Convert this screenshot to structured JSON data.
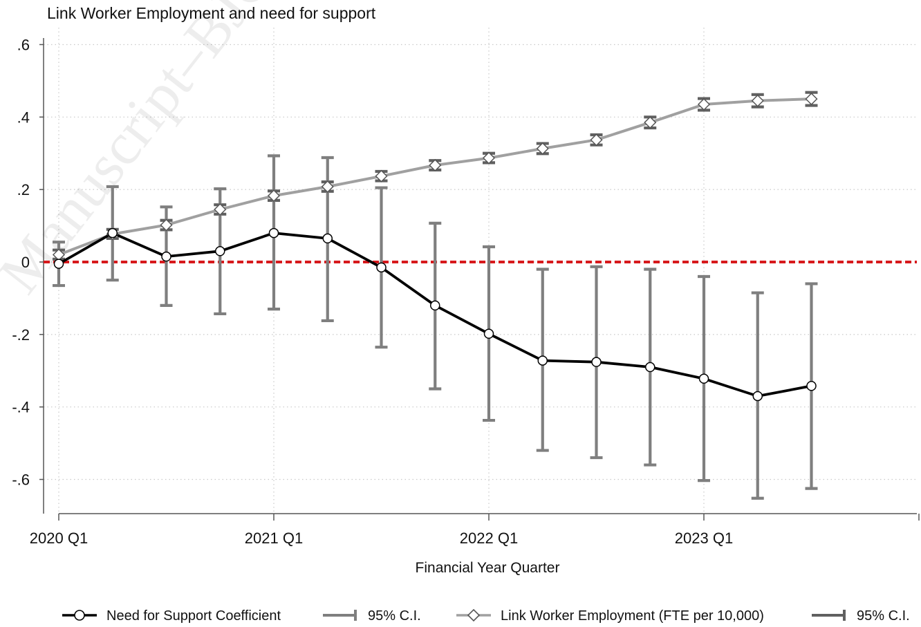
{
  "chart_data": {
    "type": "line",
    "title": "Link Worker Employment and need for support",
    "xlabel": "Financial Year Quarter",
    "ylabel": "",
    "ylim": [
      -0.7,
      0.63
    ],
    "yticks": [
      {
        "value": 0.6,
        "label": ".6"
      },
      {
        "value": 0.4,
        "label": ".4"
      },
      {
        "value": 0.2,
        "label": ".2"
      },
      {
        "value": 0,
        "label": "0"
      },
      {
        "value": -0.2,
        "label": "-.2"
      },
      {
        "value": -0.4,
        "label": "-.4"
      },
      {
        "value": -0.6,
        "label": "-.6"
      }
    ],
    "xlim": [
      0,
      16
    ],
    "xticks": [
      {
        "value": 0,
        "label": "2020 Q1"
      },
      {
        "value": 4,
        "label": "2021 Q1"
      },
      {
        "value": 8,
        "label": "2022 Q1"
      },
      {
        "value": 12,
        "label": "2023 Q1"
      },
      {
        "value": 16,
        "label": ""
      }
    ],
    "grid": true,
    "reference_line": {
      "y": 0,
      "color": "#d7191c",
      "style": "dashed"
    },
    "legend_position": "bottom",
    "series": [
      {
        "name": "Need for Support Coefficient",
        "ci_name": "95% C.I.",
        "color": "#000000",
        "ci_color": "#7f7f7f",
        "marker": "circle",
        "x": [
          0,
          1,
          2,
          3,
          4,
          5,
          6,
          7,
          8,
          9,
          10,
          11,
          12,
          13,
          14
        ],
        "y": [
          -0.005,
          0.08,
          0.015,
          0.03,
          0.08,
          0.065,
          -0.015,
          -0.12,
          -0.198,
          -0.272,
          -0.276,
          -0.29,
          -0.322,
          -0.37,
          -0.342
        ],
        "ci_low": [
          -0.065,
          -0.05,
          -0.12,
          -0.143,
          -0.13,
          -0.162,
          -0.235,
          -0.35,
          -0.437,
          -0.52,
          -0.54,
          -0.56,
          -0.603,
          -0.652,
          -0.625
        ],
        "ci_high": [
          0.055,
          0.208,
          0.152,
          0.202,
          0.293,
          0.288,
          0.205,
          0.107,
          0.042,
          -0.02,
          -0.013,
          -0.02,
          -0.04,
          -0.085,
          -0.06
        ]
      },
      {
        "name": "Link Worker Employment (FTE per 10,000)",
        "ci_name": "95% C.I.",
        "color": "#a0a0a0",
        "ci_color": "#606060",
        "marker": "diamond",
        "x": [
          0,
          1,
          2,
          3,
          4,
          5,
          6,
          7,
          8,
          9,
          10,
          11,
          12,
          13,
          14
        ],
        "y": [
          0.02,
          0.077,
          0.102,
          0.145,
          0.183,
          0.208,
          0.237,
          0.267,
          0.287,
          0.313,
          0.337,
          0.385,
          0.435,
          0.445,
          0.45
        ],
        "ci_low": [
          0.008,
          0.065,
          0.089,
          0.132,
          0.17,
          0.195,
          0.224,
          0.254,
          0.274,
          0.299,
          0.323,
          0.37,
          0.419,
          0.428,
          0.432
        ],
        "ci_high": [
          0.033,
          0.09,
          0.115,
          0.158,
          0.196,
          0.221,
          0.25,
          0.28,
          0.3,
          0.327,
          0.351,
          0.4,
          0.451,
          0.462,
          0.468
        ]
      }
    ]
  },
  "watermark": "Manuscript–BJGP"
}
